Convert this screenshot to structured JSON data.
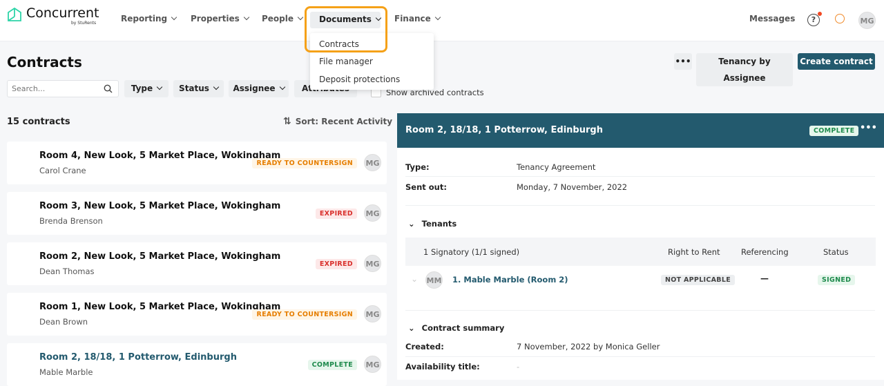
{
  "header": {
    "logo": "Concurrent",
    "logo_sub": "by StuRents",
    "nav": [
      {
        "label": "Reporting"
      },
      {
        "label": "Properties"
      },
      {
        "label": "People"
      },
      {
        "label": "Documents"
      },
      {
        "label": "Finance"
      }
    ],
    "dropdown": [
      "Contracts",
      "File manager",
      "Deposit protections"
    ],
    "messages": "Messages",
    "user_initials": "MG"
  },
  "page": {
    "title": "Contracts",
    "more_label": "•••",
    "tenancy_button": "Tenancy by Assignee",
    "create_button": "Create contract"
  },
  "filters": {
    "search_placeholder": "Search...",
    "type": "Type",
    "status": "Status",
    "assignee": "Assignee",
    "attributes": "Attributes",
    "show_archived": "Show archived contracts"
  },
  "list": {
    "count": "15 contracts",
    "sort": "Sort: Recent Activity",
    "items": [
      {
        "title": "Room 4, New Look, 5 Market Place, Wokingham",
        "tenant": "Carol Crane",
        "status": "READY TO COUNTERSIGN",
        "kind": "ready",
        "assignee": "MG"
      },
      {
        "title": "Room 3, New Look, 5 Market Place, Wokingham",
        "tenant": "Brenda Brenson",
        "status": "EXPIRED",
        "kind": "expired",
        "assignee": "MG"
      },
      {
        "title": "Room 2, New Look, 5 Market Place, Wokingham",
        "tenant": "Dean Thomas",
        "status": "EXPIRED",
        "kind": "expired",
        "assignee": "MG"
      },
      {
        "title": "Room 1, New Look, 5 Market Place, Wokingham",
        "tenant": "Dean Brown",
        "status": "READY TO COUNTERSIGN",
        "kind": "ready",
        "assignee": "MG"
      },
      {
        "title": "Room 2, 18/18, 1 Potterrow, Edinburgh",
        "tenant": "Mable Marble",
        "status": "COMPLETE",
        "kind": "complete",
        "assignee": "MG",
        "selected": true
      }
    ]
  },
  "detail": {
    "title": "Room 2, 18/18, 1 Potterrow, Edinburgh",
    "status": "COMPLETE",
    "type_label": "Type:",
    "type_value": "Tenancy Agreement",
    "sent_label": "Sent out:",
    "sent_value": "Monday, 7 November, 2022",
    "tenants_heading": "Tenants",
    "signatory": "1 Signatory (1/1 signed)",
    "col_rtr": "Right to Rent",
    "col_ref": "Referencing",
    "col_status": "Status",
    "tenant": {
      "initials": "MM",
      "name": "1. Mable Marble (Room 2)",
      "rtr": "NOT APPLICABLE",
      "ref": "—",
      "status": "SIGNED"
    },
    "summary_heading": "Contract summary",
    "created_label": "Created:",
    "created_value": "7 November, 2022 by Monica Geller",
    "avail_label": "Availability title:",
    "avail_value": "-"
  },
  "colors": {
    "primary": "#235a6e",
    "highlight": "#f5a118",
    "ready": "#e67e00",
    "expired": "#d9302c",
    "complete": "#1e8a4c"
  }
}
